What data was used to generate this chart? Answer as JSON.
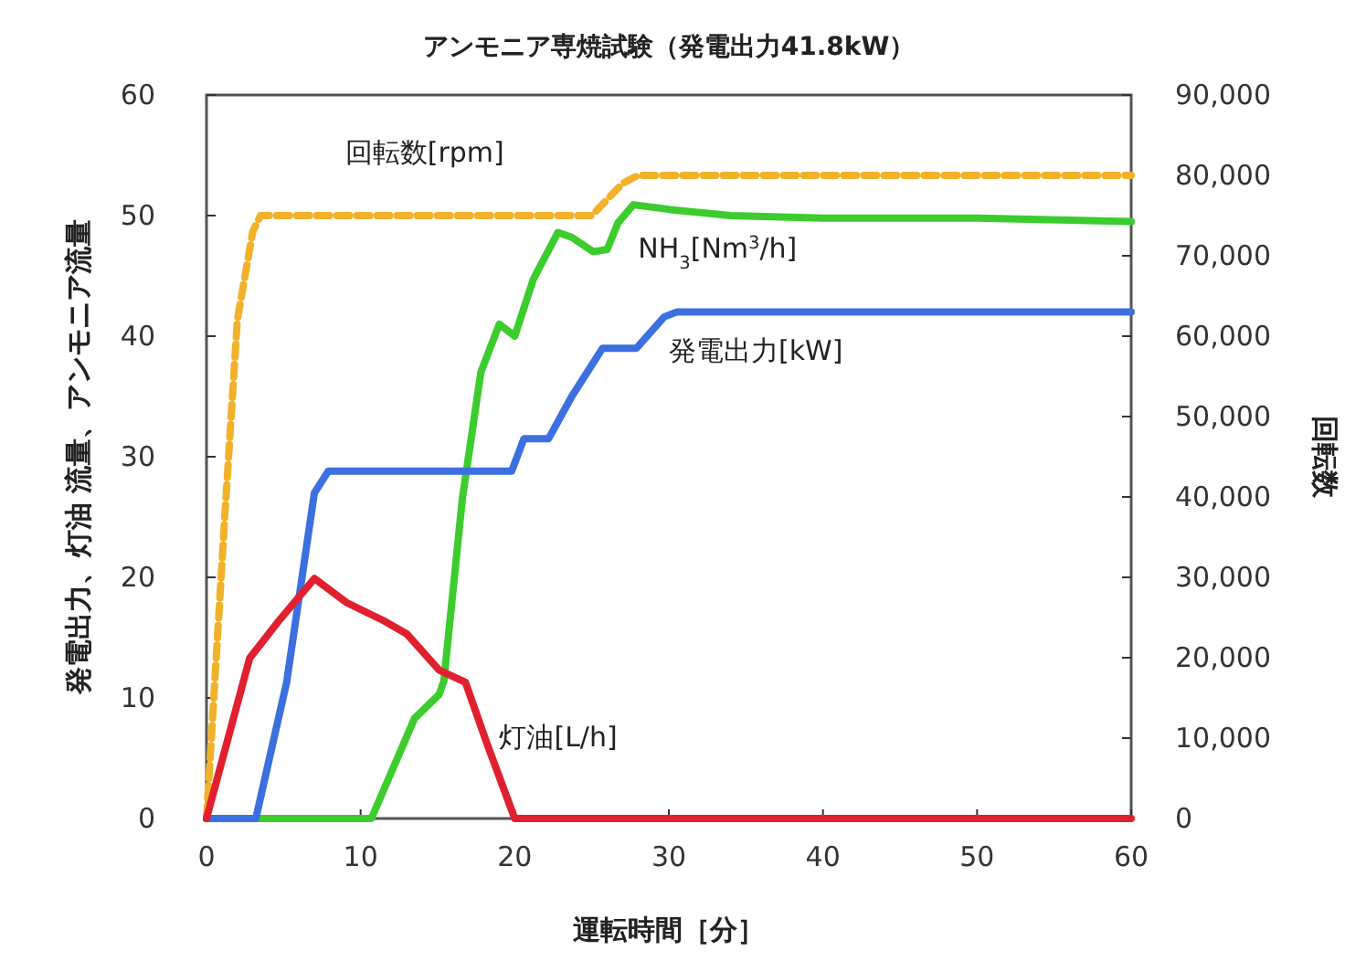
{
  "chart_data": {
    "type": "line",
    "title": "アンモニア専焼試験（発電出力41.8kW）",
    "xlabel": "運転時間［分］",
    "ylabel": "発電出力、灯油 流量、アンモニア流量",
    "y2label": "回転数",
    "xlim": [
      0,
      60
    ],
    "xticks": [
      0,
      10,
      20,
      30,
      40,
      50,
      60
    ],
    "ylim": [
      0,
      60
    ],
    "yticks": [
      0,
      10,
      20,
      30,
      40,
      50,
      60
    ],
    "y2lim": [
      0,
      90000
    ],
    "y2ticks": [
      {
        "value": 0,
        "label": "0"
      },
      {
        "value": 10000,
        "label": "10,000"
      },
      {
        "value": 20000,
        "label": "20,000"
      },
      {
        "value": 30000,
        "label": "30,000"
      },
      {
        "value": 40000,
        "label": "40,000"
      },
      {
        "value": 50000,
        "label": "50,000"
      },
      {
        "value": 60000,
        "label": "60,000"
      },
      {
        "value": 70000,
        "label": "70,000"
      },
      {
        "value": 80000,
        "label": "80,000"
      },
      {
        "value": 90000,
        "label": "90,000"
      }
    ],
    "grid": false,
    "marker": "none",
    "series": [
      {
        "name": "回転数[rpm]",
        "color": "#f2b12a",
        "axis": "y2",
        "line_style": "dashed",
        "x": [
          0,
          1.2,
          2,
          3,
          3.5,
          22,
          25,
          27,
          28,
          60
        ],
        "values": [
          0,
          38000,
          62000,
          73000,
          75000,
          75000,
          75000,
          79000,
          80000,
          80000
        ]
      },
      {
        "name": "NH$_{3}$[Nm$^{3}$/h]",
        "color": "#3ccc2e",
        "line_style": "solid",
        "x": [
          0,
          10.7,
          13.5,
          15.1,
          15.4,
          16.6,
          17.8,
          19,
          20,
          21.2,
          22.8,
          23.7,
          25.1,
          26,
          26.7,
          27.7,
          30.1,
          34,
          40,
          50,
          60
        ],
        "values": [
          0,
          0,
          8.3,
          10.3,
          11.4,
          26.5,
          37,
          41,
          40,
          44.7,
          48.6,
          48.2,
          47,
          47.2,
          49.4,
          50.9,
          50.5,
          50,
          49.8,
          49.8,
          49.5
        ]
      },
      {
        "name": "発電出力[kW]",
        "color": "#3c6fe0",
        "line_style": "solid",
        "x": [
          0,
          3.2,
          5.2,
          7,
          7.9,
          19.8,
          20.6,
          22.2,
          23.7,
          25.7,
          27.9,
          29.7,
          30.5,
          60
        ],
        "values": [
          0,
          0,
          11.3,
          27,
          28.8,
          28.8,
          31.5,
          31.5,
          35,
          39,
          39,
          41.6,
          42,
          42
        ]
      },
      {
        "name": "灯油[L/h]",
        "color": "#e0202e",
        "line_style": "solid",
        "x": [
          0,
          2.8,
          4.7,
          7,
          9.1,
          11.5,
          13,
          15.1,
          16.8,
          18.2,
          20,
          60
        ],
        "values": [
          0,
          13.3,
          16.4,
          19.9,
          17.9,
          16.4,
          15.3,
          12.3,
          11.3,
          6.2,
          0,
          0
        ]
      }
    ]
  }
}
